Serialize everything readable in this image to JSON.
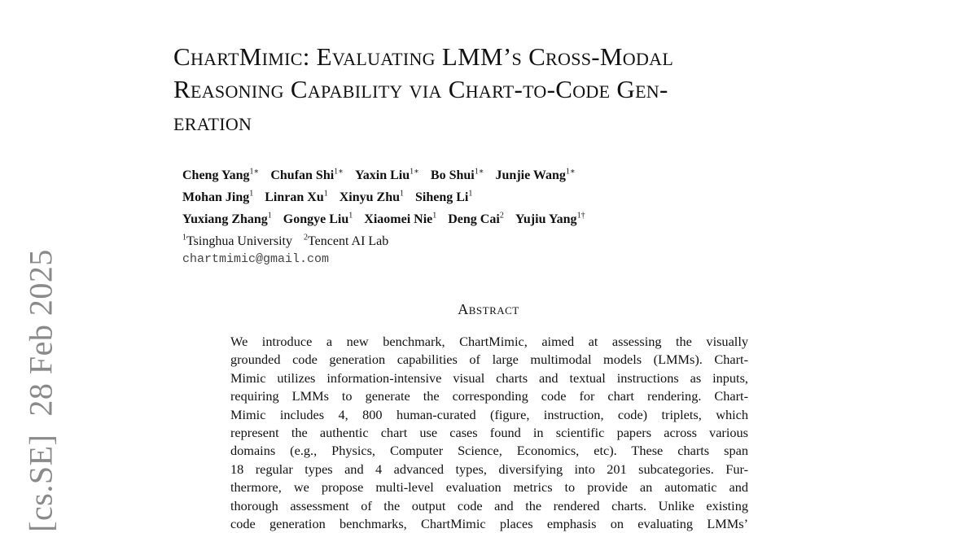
{
  "arxiv_stamp": {
    "category": "[cs.SE]",
    "date": "28 Feb 2025"
  },
  "title_lines": [
    "ChartMimic: Evaluating LMM’s Cross-Modal",
    "Reasoning Capability via Chart-to-Code Gen-",
    "eration"
  ],
  "authors": {
    "rows": [
      [
        {
          "name": "Cheng Yang",
          "sup": "1∗"
        },
        {
          "name": "Chufan Shi",
          "sup": "1∗"
        },
        {
          "name": "Yaxin Liu",
          "sup": "1∗"
        },
        {
          "name": "Bo Shui",
          "sup": "1∗"
        },
        {
          "name": "Junjie Wang",
          "sup": "1∗"
        }
      ],
      [
        {
          "name": "Mohan Jing",
          "sup": "1"
        },
        {
          "name": "Linran Xu",
          "sup": "1"
        },
        {
          "name": "Xinyu Zhu",
          "sup": "1"
        },
        {
          "name": "Siheng Li",
          "sup": "1"
        }
      ],
      [
        {
          "name": "Yuxiang Zhang",
          "sup": "1"
        },
        {
          "name": "Gongye Liu",
          "sup": "1"
        },
        {
          "name": "Xiaomei Nie",
          "sup": "1"
        },
        {
          "name": "Deng Cai",
          "sup": "2"
        },
        {
          "name": "Yujiu Yang",
          "sup": "1†"
        }
      ]
    ],
    "affiliations": [
      {
        "sup": "1",
        "name": "Tsinghua University"
      },
      {
        "sup": "2",
        "name": "Tencent AI Lab"
      }
    ],
    "email": "chartmimic@gmail.com"
  },
  "abstract": {
    "heading": "Abstract",
    "lines": [
      "We introduce a new benchmark, ChartMimic, aimed at assessing the visually",
      "grounded code generation capabilities of large multimodal models (LMMs). Chart-",
      "Mimic utilizes information-intensive visual charts and textual instructions as inputs,",
      "requiring LMMs to generate the corresponding code for chart rendering. Chart-",
      "Mimic includes 4, 800 human-curated (figure, instruction, code) triplets, which",
      "represent the authentic chart use cases found in scientific papers across various",
      "domains (e.g., Physics, Computer Science, Economics, etc). These charts span",
      "18 regular types and 4 advanced types, diversifying into 201 subcategories. Fur-",
      "thermore, we propose multi-level evaluation metrics to provide an automatic and",
      "thorough assessment of the output code and the rendered charts. Unlike existing",
      "code generation benchmarks, ChartMimic places emphasis on evaluating LMMs’"
    ]
  }
}
